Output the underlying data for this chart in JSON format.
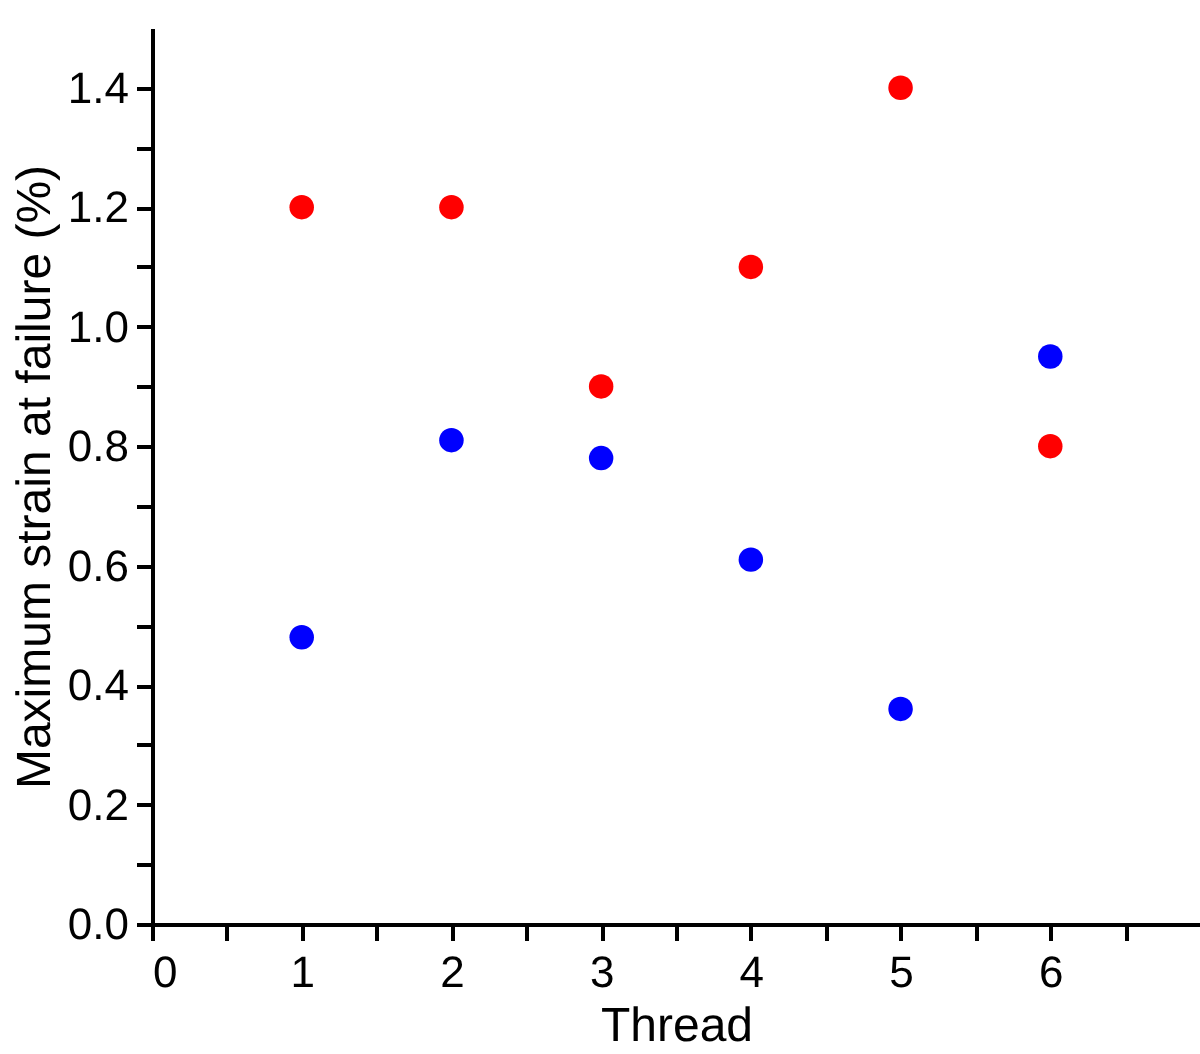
{
  "chart_data": {
    "type": "scatter",
    "xlabel": "Thread",
    "ylabel": "Maximum strain at failure (%)",
    "x": [
      1,
      2,
      3,
      4,
      5,
      6
    ],
    "series": [
      {
        "color": "#ff0000",
        "values": [
          1.2,
          1.2,
          0.9,
          1.1,
          1.4,
          0.8
        ]
      },
      {
        "color": "#0000ff",
        "values": [
          0.48,
          0.81,
          0.78,
          0.61,
          0.36,
          0.95
        ]
      }
    ],
    "xlim": [
      0,
      7
    ],
    "ylim": [
      0,
      1.5
    ],
    "xticks": [
      0,
      {
        "value": 0.5,
        "label": null
      },
      1,
      {
        "value": 1.5,
        "label": null
      },
      2,
      {
        "value": 2.5,
        "label": null
      },
      3,
      {
        "value": 3.5,
        "label": null
      },
      4,
      {
        "value": 4.5,
        "label": null
      },
      5,
      {
        "value": 5.5,
        "label": null
      },
      6,
      {
        "value": 6.5,
        "label": null
      }
    ],
    "yticks": [
      {
        "value": 0,
        "label": "0.0"
      },
      {
        "value": 0.1,
        "label": null
      },
      {
        "value": 0.2,
        "label": "0.2"
      },
      {
        "value": 0.3,
        "label": null
      },
      {
        "value": 0.4,
        "label": "0.4"
      },
      {
        "value": 0.5,
        "label": null
      },
      {
        "value": 0.6,
        "label": "0.6"
      },
      {
        "value": 0.7,
        "label": null
      },
      {
        "value": 0.8,
        "label": "0.8"
      },
      {
        "value": 0.9,
        "label": null
      },
      {
        "value": 1.0,
        "label": "1.0"
      },
      {
        "value": 1.1,
        "label": null
      },
      {
        "value": 1.2,
        "label": "1.2"
      },
      {
        "value": 1.3,
        "label": null
      },
      {
        "value": 1.4,
        "label": "1.4"
      }
    ],
    "grid": false,
    "marker": "circle"
  }
}
